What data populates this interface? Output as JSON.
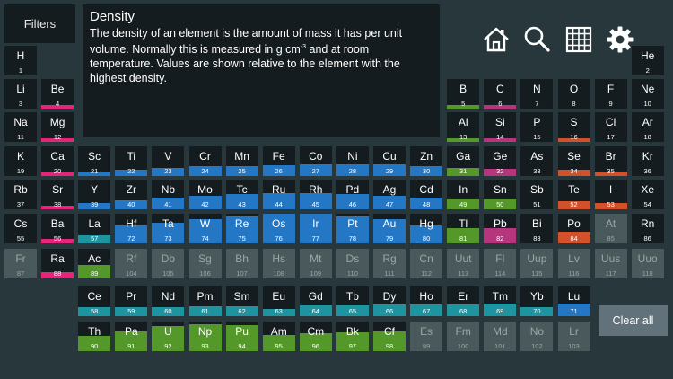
{
  "filters_label": "Filters",
  "info": {
    "title": "Density",
    "text_before_unit": "The density of an element is the amount of mass it has per unit volume. Normally this is measured in g cm",
    "unit_superscript": "-3",
    "text_after_unit": " and at room temperature. Values are shown relative to the element with the highest density."
  },
  "toolbar": [
    "home-icon",
    "search-icon",
    "grid-icon",
    "gear-icon"
  ],
  "clear_label": "Clear all",
  "colors": {
    "blue": "#2477c4",
    "green": "#54982a",
    "teal": "#1d94a0",
    "red": "#d2502a",
    "magenta": "#b6357d",
    "pink": "#e52579",
    "gray": "#4a5a5c"
  },
  "elements": [
    {
      "s": "H",
      "n": 1,
      "r": 1,
      "c": 1,
      "col": "",
      "d": 0
    },
    {
      "s": "He",
      "n": 2,
      "r": 1,
      "c": 18,
      "col": "",
      "d": 0
    },
    {
      "s": "Li",
      "n": 3,
      "r": 2,
      "c": 1,
      "col": "",
      "d": 0.02
    },
    {
      "s": "Be",
      "n": 4,
      "r": 2,
      "c": 2,
      "col": "pink",
      "d": 0.08
    },
    {
      "s": "B",
      "n": 5,
      "r": 2,
      "c": 13,
      "col": "green",
      "d": 0.1
    },
    {
      "s": "C",
      "n": 6,
      "r": 2,
      "c": 14,
      "col": "magenta",
      "d": 0.1
    },
    {
      "s": "N",
      "n": 7,
      "r": 2,
      "c": 15,
      "col": "",
      "d": 0
    },
    {
      "s": "O",
      "n": 8,
      "r": 2,
      "c": 16,
      "col": "",
      "d": 0
    },
    {
      "s": "F",
      "n": 9,
      "r": 2,
      "c": 17,
      "col": "",
      "d": 0
    },
    {
      "s": "Ne",
      "n": 10,
      "r": 2,
      "c": 18,
      "col": "",
      "d": 0
    },
    {
      "s": "Na",
      "n": 11,
      "r": 3,
      "c": 1,
      "col": "",
      "d": 0.04
    },
    {
      "s": "Mg",
      "n": 12,
      "r": 3,
      "c": 2,
      "col": "pink",
      "d": 0.08
    },
    {
      "s": "Al",
      "n": 13,
      "r": 3,
      "c": 13,
      "col": "green",
      "d": 0.12
    },
    {
      "s": "Si",
      "n": 14,
      "r": 3,
      "c": 14,
      "col": "magenta",
      "d": 0.1
    },
    {
      "s": "P",
      "n": 15,
      "r": 3,
      "c": 15,
      "col": "",
      "d": 0.08
    },
    {
      "s": "S",
      "n": 16,
      "r": 3,
      "c": 16,
      "col": "red",
      "d": 0.08
    },
    {
      "s": "Cl",
      "n": 17,
      "r": 3,
      "c": 17,
      "col": "",
      "d": 0
    },
    {
      "s": "Ar",
      "n": 18,
      "r": 3,
      "c": 18,
      "col": "",
      "d": 0
    },
    {
      "s": "K",
      "n": 19,
      "r": 4,
      "c": 1,
      "col": "",
      "d": 0.04
    },
    {
      "s": "Ca",
      "n": 20,
      "r": 4,
      "c": 2,
      "col": "pink",
      "d": 0.07
    },
    {
      "s": "Sc",
      "n": 21,
      "r": 4,
      "c": 3,
      "col": "blue",
      "d": 0.13
    },
    {
      "s": "Ti",
      "n": 22,
      "r": 4,
      "c": 4,
      "col": "blue",
      "d": 0.2
    },
    {
      "s": "V",
      "n": 23,
      "r": 4,
      "c": 5,
      "col": "blue",
      "d": 0.27
    },
    {
      "s": "Cr",
      "n": 24,
      "r": 4,
      "c": 6,
      "col": "blue",
      "d": 0.32
    },
    {
      "s": "Mn",
      "n": 25,
      "r": 4,
      "c": 7,
      "col": "blue",
      "d": 0.33
    },
    {
      "s": "Fe",
      "n": 26,
      "r": 4,
      "c": 8,
      "col": "blue",
      "d": 0.35
    },
    {
      "s": "Co",
      "n": 27,
      "r": 4,
      "c": 9,
      "col": "blue",
      "d": 0.39
    },
    {
      "s": "Ni",
      "n": 28,
      "r": 4,
      "c": 10,
      "col": "blue",
      "d": 0.39
    },
    {
      "s": "Cu",
      "n": 29,
      "r": 4,
      "c": 11,
      "col": "blue",
      "d": 0.4
    },
    {
      "s": "Zn",
      "n": 30,
      "r": 4,
      "c": 12,
      "col": "blue",
      "d": 0.32
    },
    {
      "s": "Ga",
      "n": 31,
      "r": 4,
      "c": 13,
      "col": "green",
      "d": 0.27
    },
    {
      "s": "Ge",
      "n": 32,
      "r": 4,
      "c": 14,
      "col": "magenta",
      "d": 0.25
    },
    {
      "s": "As",
      "n": 33,
      "r": 4,
      "c": 15,
      "col": "",
      "d": 0.26
    },
    {
      "s": "Se",
      "n": 34,
      "r": 4,
      "c": 16,
      "col": "red",
      "d": 0.22
    },
    {
      "s": "Br",
      "n": 35,
      "r": 4,
      "c": 17,
      "col": "red",
      "d": 0.14
    },
    {
      "s": "Kr",
      "n": 36,
      "r": 4,
      "c": 18,
      "col": "",
      "d": 0
    },
    {
      "s": "Rb",
      "n": 37,
      "r": 5,
      "c": 1,
      "col": "",
      "d": 0.07
    },
    {
      "s": "Sr",
      "n": 38,
      "r": 5,
      "c": 2,
      "col": "pink",
      "d": 0.12
    },
    {
      "s": "Y",
      "n": 39,
      "r": 5,
      "c": 3,
      "col": "blue",
      "d": 0.2
    },
    {
      "s": "Zr",
      "n": 40,
      "r": 5,
      "c": 4,
      "col": "blue",
      "d": 0.29
    },
    {
      "s": "Nb",
      "n": 41,
      "r": 5,
      "c": 5,
      "col": "blue",
      "d": 0.38
    },
    {
      "s": "Mo",
      "n": 42,
      "r": 5,
      "c": 6,
      "col": "blue",
      "d": 0.45
    },
    {
      "s": "Tc",
      "n": 43,
      "r": 5,
      "c": 7,
      "col": "blue",
      "d": 0.5
    },
    {
      "s": "Ru",
      "n": 44,
      "r": 5,
      "c": 8,
      "col": "blue",
      "d": 0.55
    },
    {
      "s": "Rh",
      "n": 45,
      "r": 5,
      "c": 9,
      "col": "blue",
      "d": 0.55
    },
    {
      "s": "Pd",
      "n": 46,
      "r": 5,
      "c": 10,
      "col": "blue",
      "d": 0.5
    },
    {
      "s": "Ag",
      "n": 47,
      "r": 5,
      "c": 11,
      "col": "blue",
      "d": 0.46
    },
    {
      "s": "Cd",
      "n": 48,
      "r": 5,
      "c": 12,
      "col": "blue",
      "d": 0.38
    },
    {
      "s": "In",
      "n": 49,
      "r": 5,
      "c": 13,
      "col": "green",
      "d": 0.32
    },
    {
      "s": "Sn",
      "n": 50,
      "r": 5,
      "c": 14,
      "col": "green",
      "d": 0.32
    },
    {
      "s": "Sb",
      "n": 51,
      "r": 5,
      "c": 15,
      "col": "",
      "d": 0.29
    },
    {
      "s": "Te",
      "n": 52,
      "r": 5,
      "c": 16,
      "col": "red",
      "d": 0.28
    },
    {
      "s": "I",
      "n": 53,
      "r": 5,
      "c": 17,
      "col": "red",
      "d": 0.22
    },
    {
      "s": "Xe",
      "n": 54,
      "r": 5,
      "c": 18,
      "col": "",
      "d": 0
    },
    {
      "s": "Cs",
      "n": 55,
      "r": 6,
      "c": 1,
      "col": "",
      "d": 0.08
    },
    {
      "s": "Ba",
      "n": 56,
      "r": 6,
      "c": 2,
      "col": "pink",
      "d": 0.16
    },
    {
      "s": "La",
      "n": 57,
      "r": 6,
      "c": 3,
      "col": "teal",
      "d": 0.27
    },
    {
      "s": "Hf",
      "n": 72,
      "r": 6,
      "c": 4,
      "col": "blue",
      "d": 0.6
    },
    {
      "s": "Ta",
      "n": 73,
      "r": 6,
      "c": 5,
      "col": "blue",
      "d": 0.7
    },
    {
      "s": "W",
      "n": 74,
      "r": 6,
      "c": 6,
      "col": "blue",
      "d": 0.82
    },
    {
      "s": "Re",
      "n": 75,
      "r": 6,
      "c": 7,
      "col": "blue",
      "d": 0.9
    },
    {
      "s": "Os",
      "n": 76,
      "r": 6,
      "c": 8,
      "col": "blue",
      "d": 1.0
    },
    {
      "s": "Ir",
      "n": 77,
      "r": 6,
      "c": 9,
      "col": "blue",
      "d": 0.99
    },
    {
      "s": "Pt",
      "n": 78,
      "r": 6,
      "c": 10,
      "col": "blue",
      "d": 0.9
    },
    {
      "s": "Au",
      "n": 79,
      "r": 6,
      "c": 11,
      "col": "blue",
      "d": 0.82
    },
    {
      "s": "Hg",
      "n": 80,
      "r": 6,
      "c": 12,
      "col": "blue",
      "d": 0.6
    },
    {
      "s": "Tl",
      "n": 81,
      "r": 6,
      "c": 13,
      "col": "green",
      "d": 0.52
    },
    {
      "s": "Pb",
      "n": 82,
      "r": 6,
      "c": 14,
      "col": "magenta",
      "d": 0.5
    },
    {
      "s": "Bi",
      "n": 83,
      "r": 6,
      "c": 15,
      "col": "",
      "d": 0.43
    },
    {
      "s": "Po",
      "n": 84,
      "r": 6,
      "c": 16,
      "col": "red",
      "d": 0.4
    },
    {
      "s": "At",
      "n": 85,
      "r": 6,
      "c": 17,
      "col": "gray",
      "d": 0
    },
    {
      "s": "Rn",
      "n": 86,
      "r": 6,
      "c": 18,
      "col": "",
      "d": 0
    },
    {
      "s": "Fr",
      "n": 87,
      "r": 7,
      "c": 1,
      "col": "gray",
      "d": 0
    },
    {
      "s": "Ra",
      "n": 88,
      "r": 7,
      "c": 2,
      "col": "pink",
      "d": 0.22
    },
    {
      "s": "Ac",
      "n": 89,
      "r": 7,
      "c": 3,
      "col": "green",
      "d": 0.44
    },
    {
      "s": "Rf",
      "n": 104,
      "r": 7,
      "c": 4,
      "col": "gray",
      "d": 0
    },
    {
      "s": "Db",
      "n": 105,
      "r": 7,
      "c": 5,
      "col": "gray",
      "d": 0
    },
    {
      "s": "Sg",
      "n": 106,
      "r": 7,
      "c": 6,
      "col": "gray",
      "d": 0
    },
    {
      "s": "Bh",
      "n": 107,
      "r": 7,
      "c": 7,
      "col": "gray",
      "d": 0
    },
    {
      "s": "Hs",
      "n": 108,
      "r": 7,
      "c": 8,
      "col": "gray",
      "d": 0
    },
    {
      "s": "Mt",
      "n": 109,
      "r": 7,
      "c": 9,
      "col": "gray",
      "d": 0
    },
    {
      "s": "Ds",
      "n": 110,
      "r": 7,
      "c": 10,
      "col": "gray",
      "d": 0
    },
    {
      "s": "Rg",
      "n": 111,
      "r": 7,
      "c": 11,
      "col": "gray",
      "d": 0
    },
    {
      "s": "Cn",
      "n": 112,
      "r": 7,
      "c": 12,
      "col": "gray",
      "d": 0
    },
    {
      "s": "Uut",
      "n": 113,
      "r": 7,
      "c": 13,
      "col": "gray",
      "d": 0
    },
    {
      "s": "Fl",
      "n": 114,
      "r": 7,
      "c": 14,
      "col": "gray",
      "d": 0
    },
    {
      "s": "Uup",
      "n": 115,
      "r": 7,
      "c": 15,
      "col": "gray",
      "d": 0
    },
    {
      "s": "Lv",
      "n": 116,
      "r": 7,
      "c": 16,
      "col": "gray",
      "d": 0
    },
    {
      "s": "Uus",
      "n": 117,
      "r": 7,
      "c": 17,
      "col": "gray",
      "d": 0
    },
    {
      "s": "Uuo",
      "n": 118,
      "r": 7,
      "c": 18,
      "col": "gray",
      "d": 0
    },
    {
      "s": "Ce",
      "n": 58,
      "r": 9,
      "c": 3,
      "col": "teal",
      "d": 0.3
    },
    {
      "s": "Pr",
      "n": 59,
      "r": 9,
      "c": 4,
      "col": "teal",
      "d": 0.3
    },
    {
      "s": "Nd",
      "n": 60,
      "r": 9,
      "c": 5,
      "col": "teal",
      "d": 0.3
    },
    {
      "s": "Pm",
      "n": 61,
      "r": 9,
      "c": 6,
      "col": "teal",
      "d": 0.32
    },
    {
      "s": "Sm",
      "n": 62,
      "r": 9,
      "c": 7,
      "col": "teal",
      "d": 0.33
    },
    {
      "s": "Eu",
      "n": 63,
      "r": 9,
      "c": 8,
      "col": "teal",
      "d": 0.23
    },
    {
      "s": "Gd",
      "n": 64,
      "r": 9,
      "c": 9,
      "col": "teal",
      "d": 0.35
    },
    {
      "s": "Tb",
      "n": 65,
      "r": 9,
      "c": 10,
      "col": "teal",
      "d": 0.36
    },
    {
      "s": "Dy",
      "n": 66,
      "r": 9,
      "c": 11,
      "col": "teal",
      "d": 0.38
    },
    {
      "s": "Ho",
      "n": 67,
      "r": 9,
      "c": 12,
      "col": "teal",
      "d": 0.39
    },
    {
      "s": "Er",
      "n": 68,
      "r": 9,
      "c": 13,
      "col": "teal",
      "d": 0.4
    },
    {
      "s": "Tm",
      "n": 69,
      "r": 9,
      "c": 14,
      "col": "teal",
      "d": 0.41
    },
    {
      "s": "Yb",
      "n": 70,
      "r": 9,
      "c": 15,
      "col": "teal",
      "d": 0.3
    },
    {
      "s": "Lu",
      "n": 71,
      "r": 9,
      "c": 16,
      "col": "blue",
      "d": 0.43
    },
    {
      "s": "Th",
      "n": 90,
      "r": 10,
      "c": 3,
      "col": "green",
      "d": 0.52
    },
    {
      "s": "Pa",
      "n": 91,
      "r": 10,
      "c": 4,
      "col": "green",
      "d": 0.68
    },
    {
      "s": "U",
      "n": 92,
      "r": 10,
      "c": 5,
      "col": "green",
      "d": 0.84
    },
    {
      "s": "Np",
      "n": 93,
      "r": 10,
      "c": 6,
      "col": "green",
      "d": 0.9
    },
    {
      "s": "Pu",
      "n": 94,
      "r": 10,
      "c": 7,
      "col": "green",
      "d": 0.88
    },
    {
      "s": "Am",
      "n": 95,
      "r": 10,
      "c": 8,
      "col": "green",
      "d": 0.55
    },
    {
      "s": "Cm",
      "n": 96,
      "r": 10,
      "c": 9,
      "col": "green",
      "d": 0.6
    },
    {
      "s": "Bk",
      "n": 97,
      "r": 10,
      "c": 10,
      "col": "green",
      "d": 0.63
    },
    {
      "s": "Cf",
      "n": 98,
      "r": 10,
      "c": 11,
      "col": "green",
      "d": 0.68
    },
    {
      "s": "Es",
      "n": 99,
      "r": 10,
      "c": 12,
      "col": "gray",
      "d": 0
    },
    {
      "s": "Fm",
      "n": 100,
      "r": 10,
      "c": 13,
      "col": "gray",
      "d": 0
    },
    {
      "s": "Md",
      "n": 101,
      "r": 10,
      "c": 14,
      "col": "gray",
      "d": 0
    },
    {
      "s": "No",
      "n": 102,
      "r": 10,
      "c": 15,
      "col": "gray",
      "d": 0
    },
    {
      "s": "Lr",
      "n": 103,
      "r": 10,
      "c": 16,
      "col": "gray",
      "d": 0
    }
  ]
}
